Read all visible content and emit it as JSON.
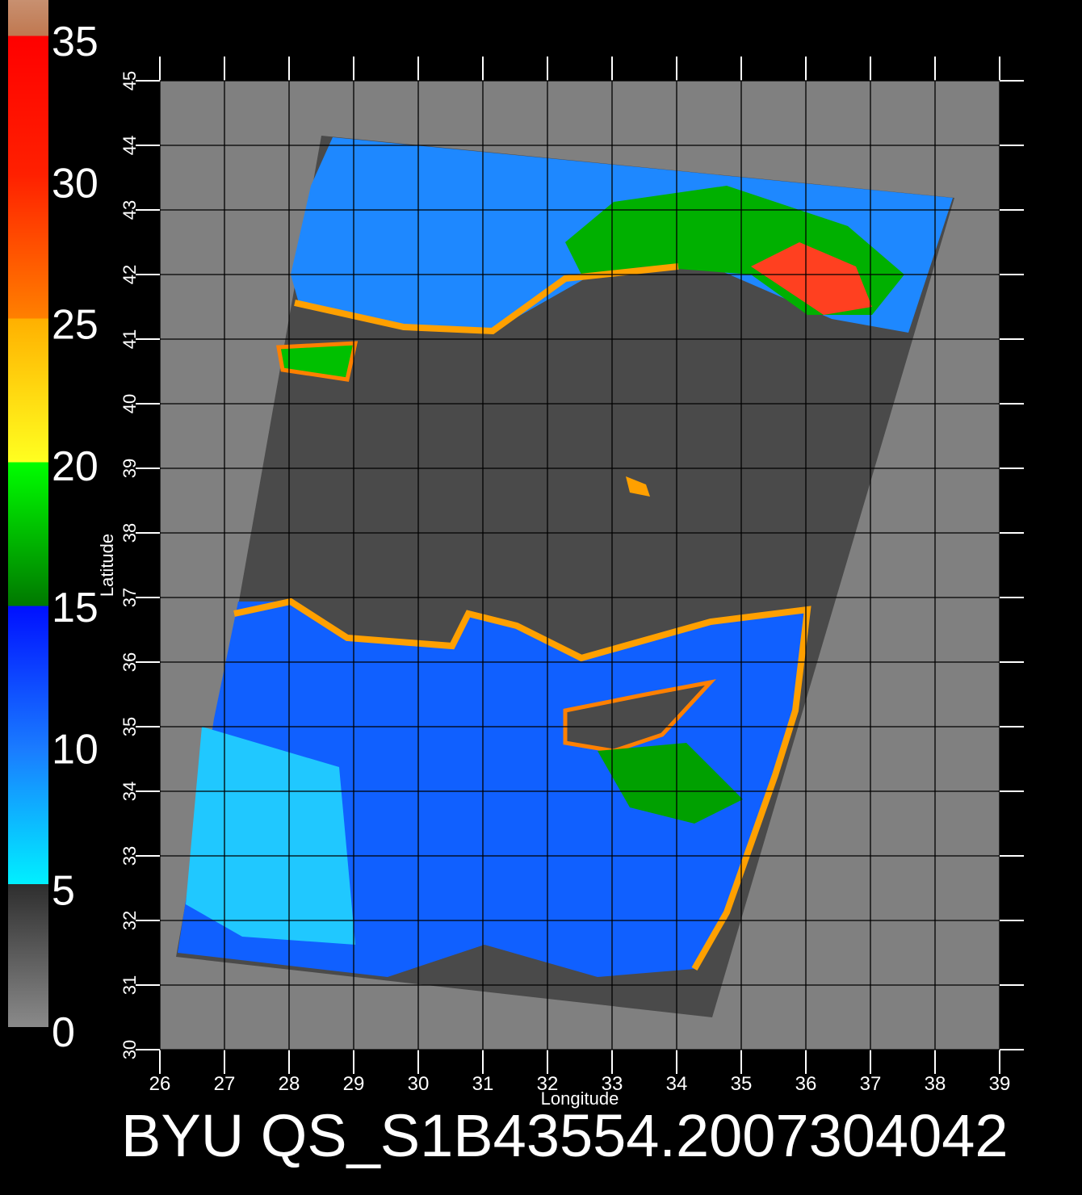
{
  "title": "BYU QS_S1B43554.2007304042",
  "colorbar": {
    "labels": [
      0,
      5,
      10,
      15,
      20,
      25,
      30,
      35
    ]
  },
  "x_axis": {
    "label": "Longitude",
    "ticks": [
      26,
      27,
      28,
      29,
      30,
      31,
      32,
      33,
      34,
      35,
      36,
      37,
      38,
      39
    ]
  },
  "y_axis": {
    "label": "Latitude",
    "ticks": [
      30,
      31,
      32,
      33,
      34,
      35,
      36,
      37,
      38,
      39,
      40,
      41,
      42,
      43,
      44,
      45
    ]
  }
}
